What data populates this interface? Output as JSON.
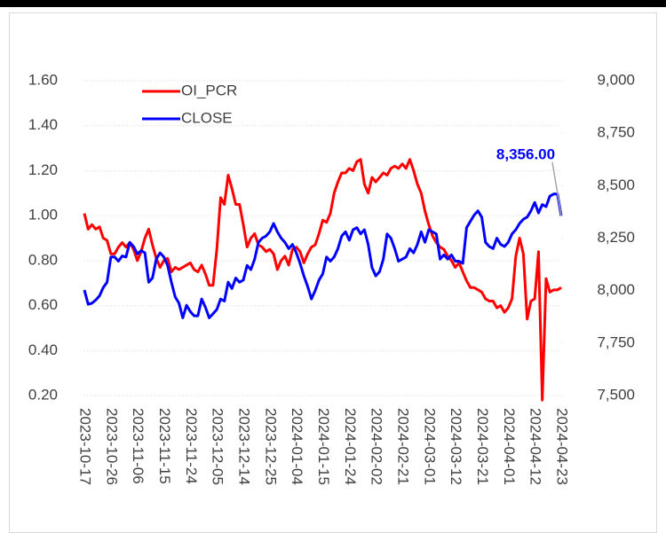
{
  "chart_data": {
    "type": "line",
    "categories": [
      "2023-10-17",
      null,
      null,
      null,
      null,
      null,
      null,
      "2023-10-26",
      null,
      null,
      null,
      null,
      null,
      null,
      "2023-11-06",
      null,
      null,
      null,
      null,
      null,
      null,
      "2023-11-15",
      null,
      null,
      null,
      null,
      null,
      null,
      "2023-11-24",
      null,
      null,
      null,
      null,
      null,
      null,
      "2023-12-05",
      null,
      null,
      null,
      null,
      null,
      null,
      "2023-12-14",
      null,
      null,
      null,
      null,
      null,
      null,
      "2023-12-25",
      null,
      null,
      null,
      null,
      null,
      null,
      "2024-01-04",
      null,
      null,
      null,
      null,
      null,
      null,
      "2024-01-15",
      null,
      null,
      null,
      null,
      null,
      null,
      "2024-01-24",
      null,
      null,
      null,
      null,
      null,
      null,
      "2024-02-02",
      null,
      null,
      null,
      null,
      null,
      null,
      "2024-02-21",
      null,
      null,
      null,
      null,
      null,
      null,
      "2024-03-01",
      null,
      null,
      null,
      null,
      null,
      null,
      "2024-03-12",
      null,
      null,
      null,
      null,
      null,
      null,
      "2024-03-21",
      null,
      null,
      null,
      null,
      null,
      null,
      "2024-04-01",
      null,
      null,
      null,
      null,
      null,
      null,
      "2024-04-12",
      null,
      null,
      null,
      null,
      null,
      null,
      "2024-04-23"
    ],
    "series": [
      {
        "name": "OI_PCR",
        "color": "#ff0000",
        "values": [
          1.01,
          0.94,
          0.96,
          0.94,
          0.95,
          0.9,
          0.89,
          0.83,
          0.83,
          0.86,
          0.88,
          0.86,
          0.88,
          0.85,
          0.8,
          0.84,
          0.9,
          0.94,
          0.87,
          0.81,
          0.77,
          0.8,
          0.81,
          0.75,
          0.77,
          0.76,
          0.77,
          0.78,
          0.79,
          0.76,
          0.75,
          0.78,
          0.74,
          0.69,
          0.69,
          0.85,
          1.08,
          1.05,
          1.18,
          1.12,
          1.05,
          1.05,
          0.96,
          0.86,
          0.9,
          0.92,
          0.87,
          0.86,
          0.84,
          0.85,
          0.83,
          0.76,
          0.8,
          0.82,
          0.78,
          0.85,
          0.86,
          0.84,
          0.79,
          0.83,
          0.86,
          0.87,
          0.92,
          0.98,
          0.97,
          1.01,
          1.1,
          1.15,
          1.19,
          1.19,
          1.21,
          1.2,
          1.24,
          1.25,
          1.14,
          1.1,
          1.17,
          1.15,
          1.17,
          1.19,
          1.18,
          1.21,
          1.22,
          1.21,
          1.23,
          1.21,
          1.25,
          1.2,
          1.14,
          1.1,
          1.02,
          0.96,
          0.91,
          0.88,
          0.86,
          0.85,
          0.82,
          0.8,
          0.77,
          0.79,
          0.75,
          0.71,
          0.68,
          0.68,
          0.67,
          0.66,
          0.63,
          0.62,
          0.62,
          0.59,
          0.6,
          0.57,
          0.59,
          0.63,
          0.82,
          0.9,
          0.83,
          0.54,
          0.62,
          0.63,
          0.84,
          0.18,
          0.72,
          0.66,
          0.67,
          0.67,
          0.68
        ]
      },
      {
        "name": "CLOSE",
        "color": "#0000ff",
        "axis": "y2",
        "values": [
          8003,
          7935,
          7940,
          7955,
          7975,
          8015,
          8040,
          8160,
          8160,
          8140,
          8165,
          8160,
          8230,
          8210,
          8175,
          8190,
          8180,
          8040,
          8060,
          8150,
          8180,
          8160,
          8120,
          8040,
          7970,
          7940,
          7870,
          7930,
          7900,
          7880,
          7880,
          7960,
          7920,
          7870,
          7890,
          7910,
          7960,
          7950,
          8040,
          8010,
          8060,
          8040,
          8050,
          8120,
          8100,
          8150,
          8230,
          8250,
          8260,
          8280,
          8320,
          8280,
          8250,
          8230,
          8200,
          8220,
          8180,
          8130,
          8070,
          8020,
          7960,
          8000,
          8050,
          8080,
          8160,
          8140,
          8160,
          8200,
          8260,
          8280,
          8240,
          8290,
          8300,
          8270,
          8290,
          8220,
          8110,
          8070,
          8090,
          8150,
          8270,
          8250,
          8200,
          8140,
          8150,
          8160,
          8200,
          8180,
          8220,
          8280,
          8230,
          8290,
          8280,
          8270,
          8150,
          8170,
          8150,
          8170,
          8140,
          8140,
          8130,
          8300,
          8330,
          8360,
          8380,
          8350,
          8230,
          8210,
          8200,
          8250,
          8220,
          8210,
          8230,
          8270,
          8290,
          8320,
          8340,
          8350,
          8380,
          8420,
          8370,
          8410,
          8400,
          8450,
          8460,
          8460,
          8356
        ],
        "value_labels": [
          null,
          null,
          null,
          null,
          null,
          null,
          null,
          null,
          null,
          null,
          null,
          null,
          null,
          null,
          null,
          null,
          null,
          null,
          null,
          null,
          null,
          null,
          null,
          null,
          null,
          null,
          null,
          null,
          null,
          null,
          null,
          null,
          null,
          null,
          null,
          null,
          null,
          null,
          null,
          null,
          null,
          null,
          null,
          null,
          null,
          null,
          null,
          null,
          null,
          null,
          null,
          null,
          null,
          null,
          null,
          null,
          null,
          null,
          null,
          null,
          null,
          null,
          null,
          null,
          null,
          null,
          null,
          null,
          null,
          null,
          null,
          null,
          null,
          null,
          null,
          null,
          null,
          null,
          null,
          null,
          null,
          null,
          null,
          null,
          null,
          null,
          null,
          null,
          null,
          null,
          null,
          null,
          null,
          null,
          null,
          null,
          null,
          null,
          null,
          null,
          null,
          null,
          null,
          null,
          null,
          null,
          null,
          null,
          null,
          null,
          null,
          null,
          null,
          null,
          null,
          null,
          null,
          null,
          null,
          null,
          null,
          null,
          null,
          null,
          null,
          null,
          "8,356.00"
        ]
      }
    ],
    "ylim": [
      0.2,
      1.6
    ],
    "yticks": [
      {
        "value": 0.2,
        "label": "0.20"
      },
      {
        "value": 0.4,
        "label": "0.40"
      },
      {
        "value": 0.6,
        "label": "0.60"
      },
      {
        "value": 0.8,
        "label": "0.80"
      },
      {
        "value": 1.0,
        "label": "1.00"
      },
      {
        "value": 1.2,
        "label": "1.20"
      },
      {
        "value": 1.4,
        "label": "1.40"
      },
      {
        "value": 1.6,
        "label": "1.60"
      }
    ],
    "y2lim": [
      7500,
      9000
    ],
    "y2ticks": [
      {
        "value": 7500,
        "label": "7,500"
      },
      {
        "value": 7750,
        "label": "7,750"
      },
      {
        "value": 8000,
        "label": "8,000"
      },
      {
        "value": 8250,
        "label": "8,250"
      },
      {
        "value": 8500,
        "label": "8,500"
      },
      {
        "value": 8750,
        "label": "8,750"
      },
      {
        "value": 9000,
        "label": "9,000"
      }
    ],
    "grid": true,
    "legend": "upper left"
  }
}
